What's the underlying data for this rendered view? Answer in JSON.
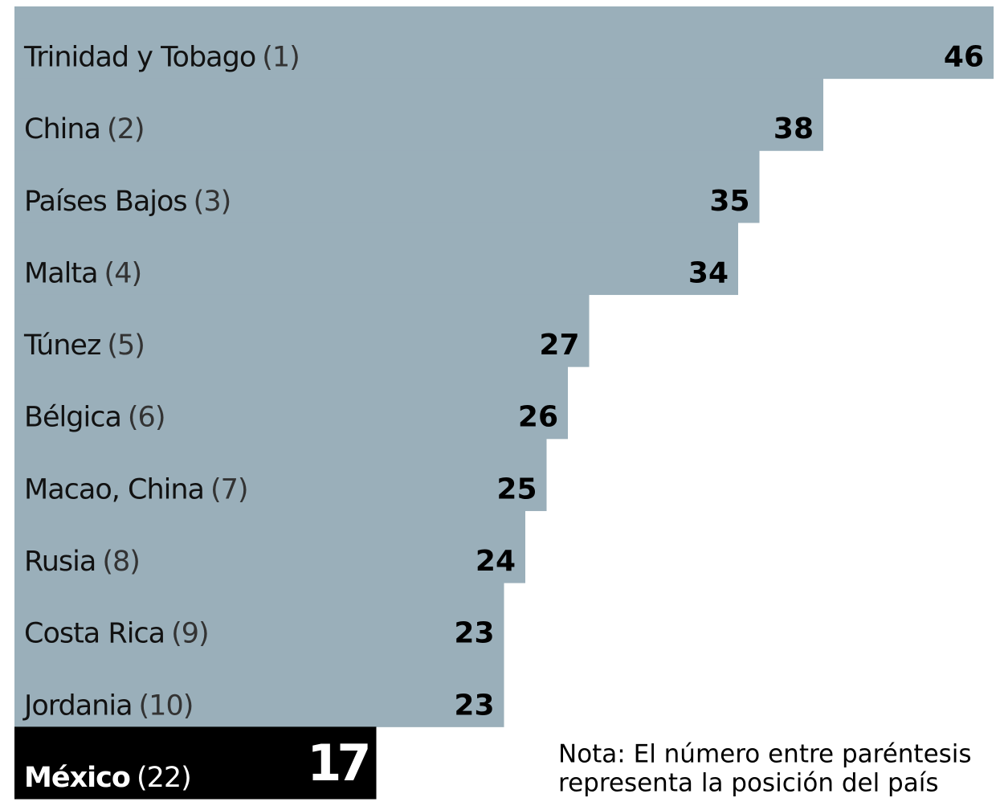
{
  "chart_data": {
    "type": "bar",
    "orientation": "horizontal",
    "categories": [
      "Trinidad y Tobago",
      "China",
      "Países Bajos",
      "Malta",
      "Túnez",
      "Bélgica",
      "Macao, China",
      "Rusia",
      "Costa Rica",
      "Jordania",
      "México"
    ],
    "ranks": [
      "(1)",
      "(2)",
      "(3)",
      "(4)",
      "(5)",
      "(6)",
      "(7)",
      "(8)",
      "(9)",
      "(10)",
      "(22)"
    ],
    "values": [
      46,
      38,
      35,
      34,
      27,
      26,
      25,
      24,
      23,
      23,
      17
    ],
    "colors": [
      "#9aafba",
      "#9aafba",
      "#9aafba",
      "#9aafba",
      "#9aafba",
      "#9aafba",
      "#9aafba",
      "#9aafba",
      "#9aafba",
      "#9aafba",
      "#000000"
    ],
    "xlim": [
      0,
      46
    ],
    "note": [
      "Nota: El número entre paréntesis",
      "representa la posición del país"
    ]
  }
}
